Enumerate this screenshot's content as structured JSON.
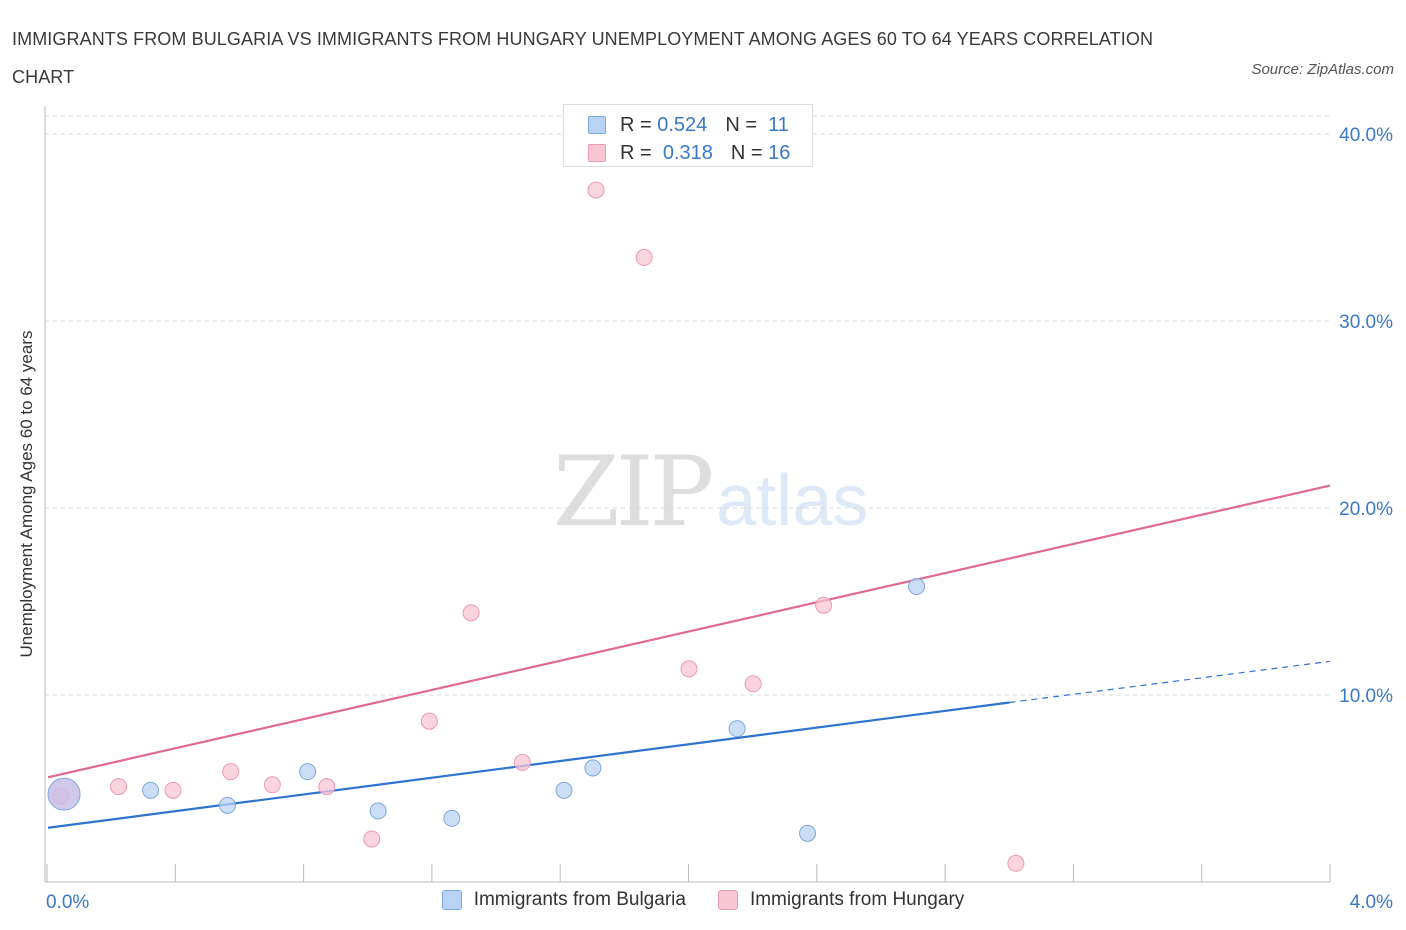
{
  "title": "IMMIGRANTS FROM BULGARIA VS IMMIGRANTS FROM HUNGARY UNEMPLOYMENT AMONG AGES 60 TO 64 YEARS CORRELATION CHART",
  "source": "Source: ZipAtlas.com",
  "watermark": {
    "zip": "ZIP",
    "atlas": "atlas"
  },
  "colors": {
    "bulgaria_fill": "#b9d3f3",
    "bulgaria_stroke": "#7fa8dc",
    "bulgaria_line": "#2f73d0",
    "hungary_fill": "#f8c6d4",
    "hungary_stroke": "#eb9ab2",
    "hungary_line": "#e06a90",
    "axis_label": "#3a78c9",
    "grid": "#d9d9d9"
  },
  "legend_top": [
    {
      "r_label": "R =",
      "r_value": "0.524",
      "n_label": "N =",
      "n_value": "11"
    },
    {
      "r_label": "R =",
      "r_value": "0.318",
      "n_label": "N =",
      "n_value": "16"
    }
  ],
  "legend_bottom": [
    {
      "label": "Immigrants from Bulgaria"
    },
    {
      "label": "Immigrants from Hungary"
    }
  ],
  "chart_data": {
    "type": "scatter",
    "title": "IMMIGRANTS FROM BULGARIA VS IMMIGRANTS FROM HUNGARY UNEMPLOYMENT AMONG AGES 60 TO 64 YEARS CORRELATION CHART",
    "xlabel": "",
    "ylabel": "Unemployment Among Ages 60 to 64 years",
    "xlim": [
      0,
      4.0
    ],
    "ylim": [
      0,
      40.0
    ],
    "x_tick_labels": [
      "0.0%",
      "4.0%"
    ],
    "y_ticks": [
      10,
      20,
      30,
      40
    ],
    "y_tick_labels": [
      "10.0%",
      "20.0%",
      "30.0%",
      "40.0%"
    ],
    "grid": true,
    "legend": "top-center",
    "series": [
      {
        "name": "Immigrants from Bulgaria",
        "R": 0.524,
        "N": 11,
        "points": [
          [
            0.05,
            4.7
          ],
          [
            0.32,
            4.9
          ],
          [
            0.56,
            4.1
          ],
          [
            0.81,
            5.9
          ],
          [
            1.03,
            3.8
          ],
          [
            1.26,
            3.4
          ],
          [
            1.61,
            4.9
          ],
          [
            1.7,
            6.1
          ],
          [
            2.15,
            8.2
          ],
          [
            2.37,
            2.6
          ],
          [
            2.71,
            15.8
          ]
        ],
        "big_point_index": 0,
        "trend": {
          "x0": 0.0,
          "y0": 2.9,
          "x1": 3.0,
          "y1": 9.6,
          "dash_x1": 4.0,
          "dash_y1": 11.8
        }
      },
      {
        "name": "Immigrants from Hungary",
        "R": 0.318,
        "N": 16,
        "points": [
          [
            0.04,
            4.6
          ],
          [
            0.22,
            5.1
          ],
          [
            0.39,
            4.9
          ],
          [
            0.57,
            5.9
          ],
          [
            0.7,
            5.2
          ],
          [
            0.87,
            5.1
          ],
          [
            1.01,
            2.3
          ],
          [
            1.19,
            8.6
          ],
          [
            1.32,
            14.4
          ],
          [
            1.48,
            6.4
          ],
          [
            1.71,
            37.0
          ],
          [
            1.86,
            33.4
          ],
          [
            2.0,
            11.4
          ],
          [
            2.2,
            10.6
          ],
          [
            2.42,
            14.8
          ],
          [
            3.02,
            1.0
          ]
        ],
        "trend": {
          "x0": 0.0,
          "y0": 5.6,
          "x1": 4.0,
          "y1": 21.2
        }
      }
    ]
  }
}
